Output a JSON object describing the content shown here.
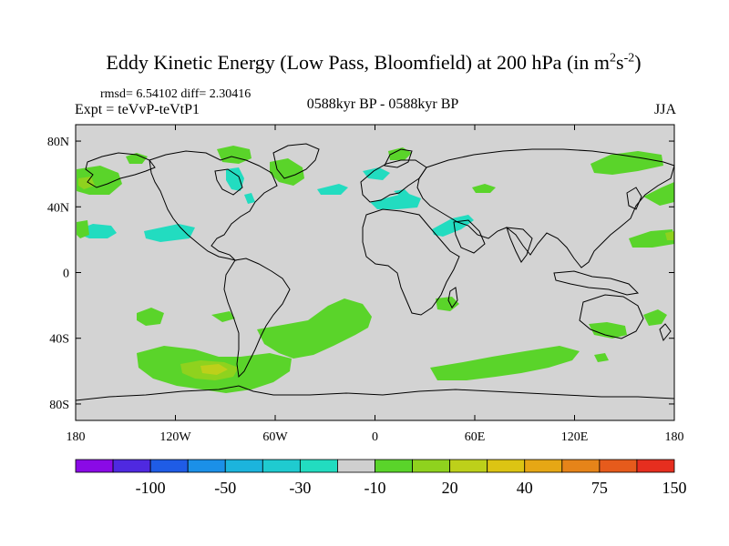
{
  "title": {
    "main": "Eddy Kinetic Energy (Low Pass, Bloomfield) at 200 hPa (in m",
    "sup1": "2",
    "mid": "s",
    "sup2": "-2",
    "end": ")"
  },
  "stats": "rmsd= 6.54102 diff= 2.30416",
  "experiment": "Expt = teVvP-teVtP1",
  "period": "0588kyr BP - 0588kyr BP",
  "season": "JJA",
  "map": {
    "lon_labels": [
      "180",
      "120W",
      "60W",
      "0",
      "60E",
      "120E",
      "180"
    ],
    "lat_labels": [
      "80N",
      "40N",
      "0",
      "40S",
      "80S"
    ],
    "background_color": "#d3d3d3"
  },
  "colorbar": {
    "labels": [
      "-100",
      "-50",
      "-30",
      "-10",
      "20",
      "40",
      "75",
      "150"
    ],
    "colors": [
      "#8a0ae6",
      "#4f29e0",
      "#1f5ce6",
      "#1b90e8",
      "#1cb4dd",
      "#1fcbd0",
      "#22dcc0",
      "#cfcfcf",
      "#5ad42a",
      "#8fd21e",
      "#bdd01a",
      "#dcc413",
      "#e6a715",
      "#e68419",
      "#e65b1c",
      "#e62e1f"
    ],
    "anomaly_colors": {
      "neg": "#22dcc0",
      "pos_low": "#5ad42a",
      "pos_mid": "#8fd21e",
      "pos_high": "#bdd01a"
    }
  }
}
